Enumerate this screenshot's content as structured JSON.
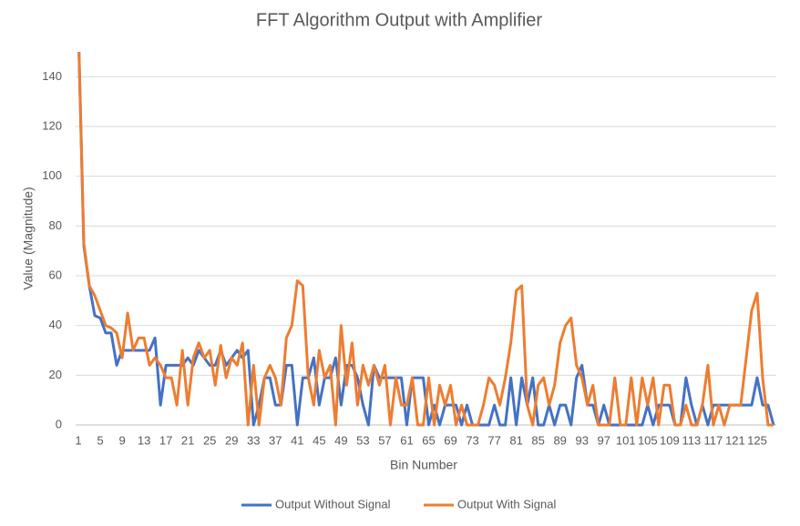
{
  "chart_data": {
    "type": "line",
    "title": "FFT Algorithm Output with Amplifier",
    "x_label": "Bin Number",
    "y_label": "Value (Magnitude)",
    "x": [
      1,
      2,
      3,
      4,
      5,
      6,
      7,
      8,
      9,
      10,
      11,
      12,
      13,
      14,
      15,
      16,
      17,
      18,
      19,
      20,
      21,
      22,
      23,
      24,
      25,
      26,
      27,
      28,
      29,
      30,
      31,
      32,
      33,
      34,
      35,
      36,
      37,
      38,
      39,
      40,
      41,
      42,
      43,
      44,
      45,
      46,
      47,
      48,
      49,
      50,
      51,
      52,
      53,
      54,
      55,
      56,
      57,
      58,
      59,
      60,
      61,
      62,
      63,
      64,
      65,
      66,
      67,
      68,
      69,
      70,
      71,
      72,
      73,
      74,
      75,
      76,
      77,
      78,
      79,
      80,
      81,
      82,
      83,
      84,
      85,
      86,
      87,
      88,
      89,
      90,
      91,
      92,
      93,
      94,
      95,
      96,
      97,
      98,
      99,
      100,
      101,
      102,
      103,
      104,
      105,
      106,
      107,
      108,
      109,
      110,
      111,
      112,
      113,
      114,
      115,
      116,
      117,
      118,
      119,
      120,
      121,
      122,
      123,
      124,
      125,
      126,
      127,
      128
    ],
    "xlim": [
      0.5,
      128.5
    ],
    "xticks": [
      1,
      5,
      9,
      13,
      17,
      21,
      25,
      29,
      33,
      37,
      41,
      45,
      49,
      53,
      57,
      61,
      65,
      69,
      73,
      77,
      81,
      85,
      89,
      93,
      97,
      101,
      105,
      109,
      113,
      117,
      121,
      125
    ],
    "ylim": [
      0,
      150
    ],
    "yticks": [
      0,
      20,
      40,
      60,
      80,
      100,
      120,
      140
    ],
    "grid": true,
    "legend": "bottom",
    "series": [
      {
        "name": "Output Without Signal",
        "color": "#4472c4",
        "values": [
          160,
          72,
          56,
          44,
          43,
          37,
          37,
          24,
          30,
          30,
          30,
          30,
          30,
          30,
          35,
          8,
          24,
          24,
          24,
          24,
          27,
          24,
          30,
          27,
          24,
          24,
          30,
          24,
          27,
          30,
          27,
          30,
          0,
          8,
          19,
          19,
          8,
          8,
          24,
          24,
          0,
          19,
          19,
          27,
          8,
          19,
          19,
          27,
          8,
          24,
          24,
          19,
          8,
          0,
          24,
          19,
          19,
          19,
          19,
          19,
          0,
          19,
          19,
          19,
          0,
          8,
          0,
          8,
          8,
          8,
          0,
          8,
          0,
          0,
          0,
          0,
          8,
          0,
          0,
          19,
          0,
          19,
          8,
          19,
          0,
          0,
          8,
          0,
          8,
          8,
          0,
          19,
          24,
          8,
          8,
          0,
          8,
          0,
          0,
          0,
          0,
          0,
          0,
          0,
          8,
          0,
          8,
          8,
          8,
          0,
          0,
          19,
          8,
          0,
          8,
          0,
          8,
          8,
          8,
          8,
          8,
          8,
          8,
          8,
          19,
          8,
          8,
          0
        ]
      },
      {
        "name": "Output With Signal",
        "color": "#ed7d31",
        "values": [
          160,
          73,
          56,
          52,
          46,
          40,
          39,
          37,
          27,
          45,
          30,
          35,
          35,
          24,
          27,
          24,
          19,
          19,
          8,
          30,
          8,
          27,
          33,
          27,
          30,
          16,
          32,
          19,
          27,
          24,
          33,
          0,
          24,
          0,
          19,
          24,
          19,
          8,
          35,
          40,
          58,
          56,
          19,
          8,
          30,
          19,
          24,
          0,
          40,
          16,
          33,
          8,
          24,
          16,
          24,
          16,
          24,
          0,
          19,
          8,
          8,
          19,
          0,
          0,
          19,
          0,
          16,
          8,
          16,
          0,
          8,
          0,
          0,
          0,
          8,
          19,
          16,
          8,
          19,
          33,
          54,
          56,
          8,
          0,
          16,
          19,
          8,
          16,
          33,
          40,
          43,
          24,
          19,
          8,
          16,
          0,
          0,
          0,
          19,
          0,
          0,
          19,
          0,
          19,
          8,
          19,
          0,
          16,
          16,
          0,
          0,
          8,
          0,
          0,
          8,
          24,
          0,
          8,
          0,
          8,
          8,
          8,
          27,
          46,
          53,
          19,
          0,
          0
        ]
      }
    ]
  }
}
